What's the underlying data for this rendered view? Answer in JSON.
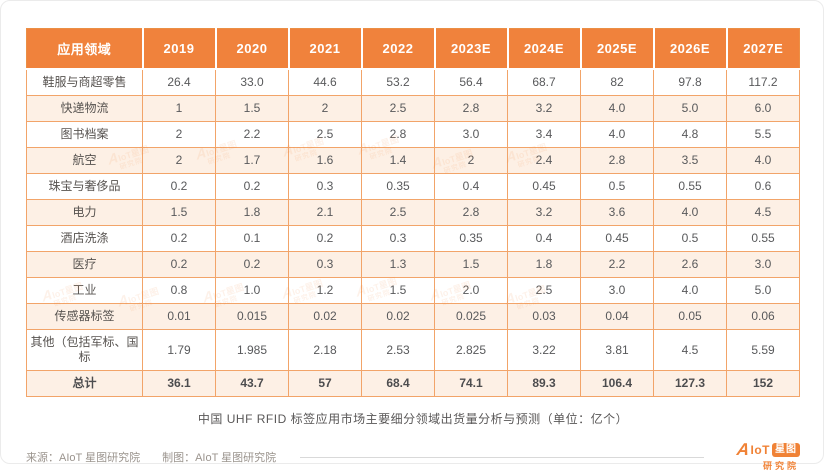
{
  "table": {
    "columns": [
      "应用领域",
      "2019",
      "2020",
      "2021",
      "2022",
      "2023E",
      "2024E",
      "2025E",
      "2026E",
      "2027E"
    ],
    "rows": [
      {
        "label": "鞋服与商超零售",
        "values": [
          "26.4",
          "33.0",
          "44.6",
          "53.2",
          "56.4",
          "68.7",
          "82",
          "97.8",
          "117.2"
        ]
      },
      {
        "label": "快递物流",
        "values": [
          "1",
          "1.5",
          "2",
          "2.5",
          "2.8",
          "3.2",
          "4.0",
          "5.0",
          "6.0"
        ]
      },
      {
        "label": "图书档案",
        "values": [
          "2",
          "2.2",
          "2.5",
          "2.8",
          "3.0",
          "3.4",
          "4.0",
          "4.8",
          "5.5"
        ]
      },
      {
        "label": "航空",
        "values": [
          "2",
          "1.7",
          "1.6",
          "1.4",
          "2",
          "2.4",
          "2.8",
          "3.5",
          "4.0"
        ]
      },
      {
        "label": "珠宝与奢侈品",
        "values": [
          "0.2",
          "0.2",
          "0.3",
          "0.35",
          "0.4",
          "0.45",
          "0.5",
          "0.55",
          "0.6"
        ]
      },
      {
        "label": "电力",
        "values": [
          "1.5",
          "1.8",
          "2.1",
          "2.5",
          "2.8",
          "3.2",
          "3.6",
          "4.0",
          "4.5"
        ]
      },
      {
        "label": "酒店洗涤",
        "values": [
          "0.2",
          "0.1",
          "0.2",
          "0.3",
          "0.35",
          "0.4",
          "0.45",
          "0.5",
          "0.55"
        ]
      },
      {
        "label": "医疗",
        "values": [
          "0.2",
          "0.2",
          "0.3",
          "1.3",
          "1.5",
          "1.8",
          "2.2",
          "2.6",
          "3.0"
        ]
      },
      {
        "label": "工业",
        "values": [
          "0.8",
          "1.0",
          "1.2",
          "1.5",
          "2.0",
          "2.5",
          "3.0",
          "4.0",
          "5.0"
        ]
      },
      {
        "label": "传感器标签",
        "values": [
          "0.01",
          "0.015",
          "0.02",
          "0.02",
          "0.025",
          "0.03",
          "0.04",
          "0.05",
          "0.06"
        ]
      },
      {
        "label": "其他（包括军标、国标",
        "values": [
          "1.79",
          "1.985",
          "2.18",
          "2.53",
          "2.825",
          "3.22",
          "3.81",
          "4.5",
          "5.59"
        ]
      },
      {
        "label": "总计",
        "values": [
          "36.1",
          "43.7",
          "57",
          "68.4",
          "74.1",
          "89.3",
          "106.4",
          "127.3",
          "152"
        ],
        "bold": true
      }
    ]
  },
  "caption": "中国 UHF RFID 标签应用市场主要细分领域出货量分析与预测（单位：亿个）",
  "footer": {
    "source": "来源：AIoT 星图研究院",
    "maker": "制图：AIoT 星图研究院"
  },
  "logo": {
    "a": "A",
    "iot": "IoT",
    "box": "星图",
    "sub": "研究院"
  },
  "watermark": {
    "a": "A",
    "line1": "IoT星图",
    "line2": "研究院"
  },
  "colors": {
    "header_bg": "#f0823c",
    "grid_line": "#f2a469",
    "stripe_bg": "#fdf0e5",
    "body_text": "#58595b",
    "caption_text": "#595757",
    "footer_text": "#9b948e",
    "logo_orange": "#f08236"
  }
}
